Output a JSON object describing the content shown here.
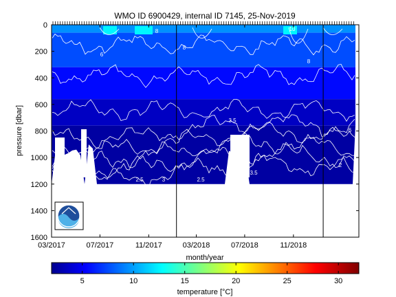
{
  "chart_data": {
    "type": "heatmap",
    "title": "WMO ID 6900429, internal ID 7145, 25-Nov-2019",
    "xlabel": "month/year",
    "ylabel": "pressure [dbar]",
    "x_ticks": [
      "03/2017",
      "07/2017",
      "11/2017",
      "03/2018",
      "07/2018",
      "11/2018"
    ],
    "y_ticks": [
      0,
      200,
      400,
      600,
      800,
      1000,
      1200,
      1400,
      1600
    ],
    "ylim": [
      1600,
      0
    ],
    "xlim": [
      "2017-03-01",
      "2019-04-15"
    ],
    "y_reversed": true,
    "grid": false,
    "colorbar": {
      "label": "temperature [°C]",
      "ticks": [
        5,
        10,
        15,
        20,
        25,
        30
      ],
      "range": [
        2,
        32
      ],
      "colormap": "jet"
    },
    "vertical_markers": [
      "2018-01-10",
      "2019-01-15"
    ],
    "contour_labels": [
      "8",
      "8",
      "6",
      "10",
      "8",
      "3.5",
      "6",
      "2",
      "2.5",
      "3",
      "2.5",
      "3.5"
    ],
    "temperature_bands": [
      {
        "top": 0,
        "bottom": 60,
        "value": 10
      },
      {
        "top": 60,
        "bottom": 320,
        "value": 8
      },
      {
        "top": 320,
        "bottom": 560,
        "value": 6
      },
      {
        "top": 560,
        "bottom": 760,
        "value": 4
      },
      {
        "top": 760,
        "bottom": 1200,
        "value": 3
      }
    ],
    "logo": "noaa-logo"
  }
}
